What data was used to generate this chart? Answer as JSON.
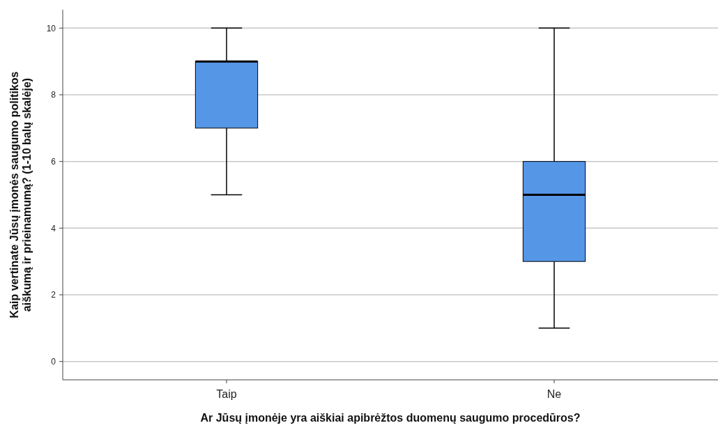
{
  "chart_data": {
    "type": "box",
    "xlabel": "Ar Jūsų įmonėje yra aiškiai apibrėžtos duomenų saugumo procedūros?",
    "ylabel": "Kaip vertinate Jūsų įmonės saugumo politikos\naiškumą ir prieinamumą? (1-10 balų skalėje)",
    "categories": [
      "Taip",
      "Ne"
    ],
    "color": "#5596e6",
    "boxes": [
      {
        "low": 5,
        "q1": 7,
        "median": 9,
        "q3": 9,
        "high": 10
      },
      {
        "low": 1,
        "q1": 3,
        "median": 5,
        "q3": 6,
        "high": 10
      }
    ],
    "ylim": [
      -0.55,
      10.55
    ],
    "yticks": [
      0,
      2,
      4,
      6,
      8,
      10
    ],
    "grid": "y"
  }
}
